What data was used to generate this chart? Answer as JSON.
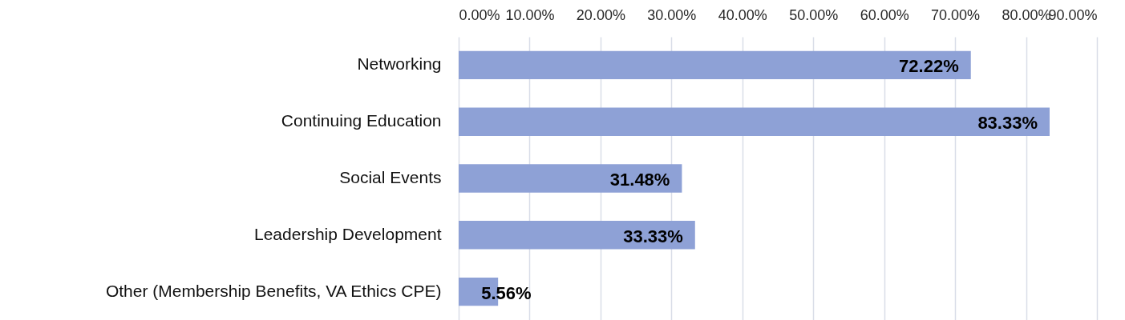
{
  "chart_data": {
    "type": "bar",
    "orientation": "horizontal",
    "categories": [
      "Networking",
      "Continuing Education",
      "Social Events",
      "Leadership Development",
      "Other (Membership Benefits, VA Ethics CPE)"
    ],
    "values": [
      72.22,
      83.33,
      31.48,
      33.33,
      5.56
    ],
    "value_labels": [
      "72.22%",
      "83.33%",
      "31.48%",
      "33.33%",
      "5.56%"
    ],
    "color": "#8ea1d6",
    "xlim": [
      0,
      90
    ],
    "xticks": [
      {
        "value": 0,
        "label": "0.00%"
      },
      {
        "value": 10,
        "label": "10.00%"
      },
      {
        "value": 20,
        "label": "20.00%"
      },
      {
        "value": 30,
        "label": "30.00%"
      },
      {
        "value": 40,
        "label": "40.00%"
      },
      {
        "value": 50,
        "label": "50.00%"
      },
      {
        "value": 60,
        "label": "60.00%"
      },
      {
        "value": 70,
        "label": "70.00%"
      },
      {
        "value": 80,
        "label": "80.00%"
      },
      {
        "value": 90,
        "label": "90.00%"
      }
    ],
    "grid": "x"
  }
}
